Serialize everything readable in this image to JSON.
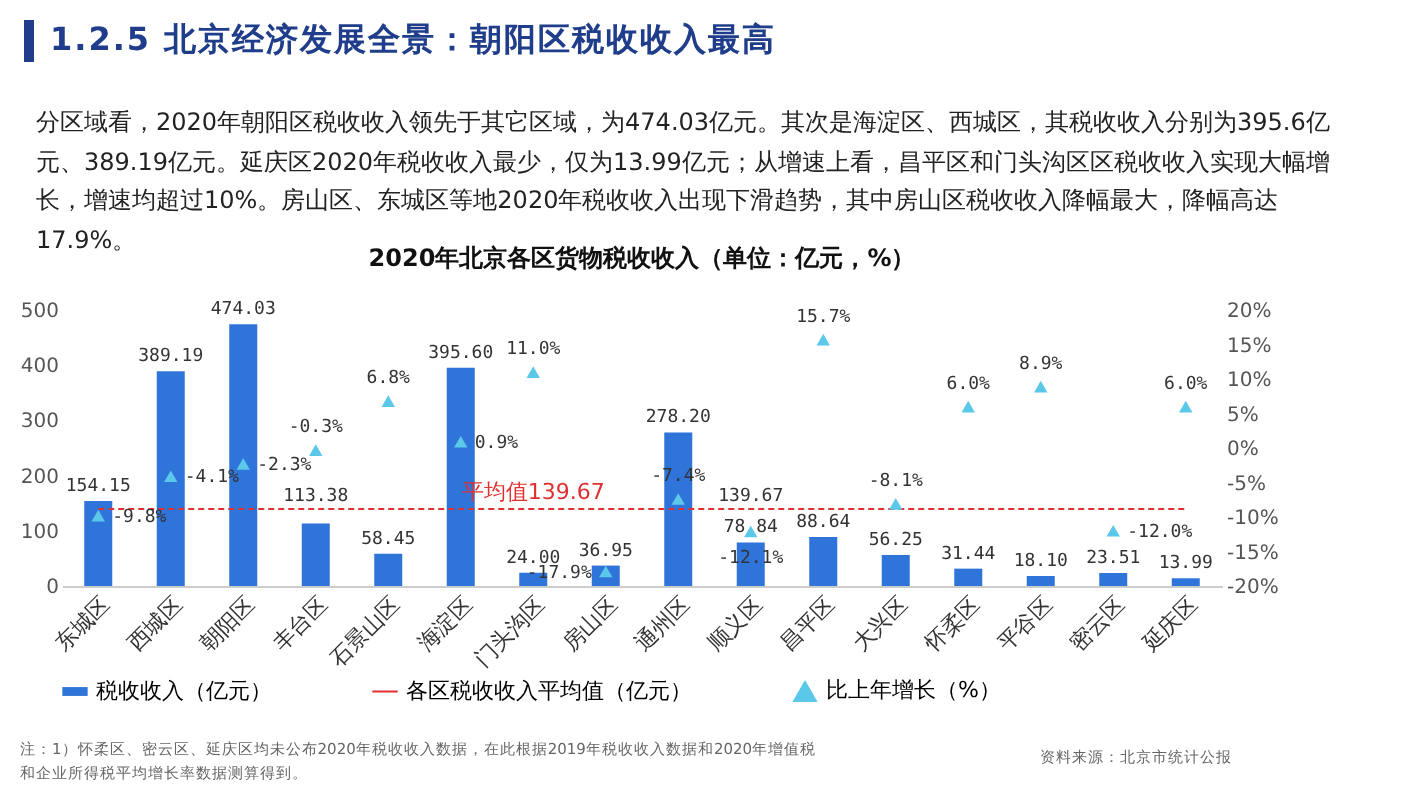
{
  "chart_data": {
    "type": "bar",
    "title": "2020年北京各区货物税收收入（单位：亿元，%）",
    "annotations": [
      "1.2.5 北京经济发展全景：朝阳区税收收入最高",
      "分区域看，2020年朝阳区税收收入领先于其它区域，为474.03亿元。其次是海淀区、西城区，其税收收入分别为395.6亿元、389.19亿元。延庆区2020年税收收入最少，仅为13.99亿元；从增速上看，昌平区和门头沟区区税收收入实现大幅增长，增速均超过10%。房山区、东城区等地2020年税收收入出现下滑趋势，其中房山区税收收入降幅最大，降幅高达17.9%。",
      "注：1）怀柔区、密云区、延庆区均未公布2020年税收收入数据，在此根据2019年税收收入数据和2020年增值税和企业所得税平均增长率数据测算得到。",
      "资料来源：北京市统计公报",
      {
        "text": "平均值139.67",
        "x": "门头沟区",
        "y": 139.67
      }
    ],
    "categories": [
      "东城区",
      "西城区",
      "朝阳区",
      "丰台区",
      "石景山区",
      "海淀区",
      "门头沟区",
      "房山区",
      "通州区",
      "顺义区",
      "昌平区",
      "大兴区",
      "怀柔区",
      "平谷区",
      "密云区",
      "延庆区"
    ],
    "series": [
      {
        "name": "税收收入（亿元）",
        "color": "#2f74d8",
        "values": [
          154.15,
          389.19,
          474.03,
          113.38,
          58.45,
          395.6,
          24.0,
          36.95,
          278.2,
          78.84,
          88.64,
          56.25,
          31.44,
          18.1,
          23.51,
          13.99
        ],
        "value_labels": [
          "154.15",
          "389.19",
          "474.03",
          "113.38",
          "58.45",
          "395.60",
          "24.00",
          "36.95",
          "278.20",
          "78.84",
          "88.64",
          "56.25",
          "31.44",
          "18.10",
          "23.51",
          "13.99"
        ]
      },
      {
        "name": "各区税收收入平均值（亿元）",
        "type": "line",
        "color": "#e03030",
        "line_style": "dashed",
        "marker": "none",
        "values": [
          139.67,
          139.67,
          139.67,
          139.67,
          139.67,
          139.67,
          139.67,
          139.67,
          139.67,
          139.67,
          139.67,
          139.67,
          139.67,
          139.67,
          139.67,
          139.67
        ],
        "value_labels": [
          null,
          null,
          null,
          null,
          null,
          null,
          null,
          null,
          null,
          "139.67",
          null,
          null,
          null,
          null,
          null,
          null
        ]
      },
      {
        "name": "比上年增长（%）",
        "type": "scatter",
        "axis": "y2",
        "color": "#5bc8ea",
        "marker": "triangle",
        "values": [
          -9.8,
          -4.1,
          -2.3,
          -0.3,
          6.8,
          0.9,
          11.0,
          -17.9,
          -7.4,
          -12.1,
          15.7,
          -8.1,
          6.0,
          8.9,
          -12.0,
          6.0
        ],
        "value_labels": [
          "-9.8%",
          "-4.1%",
          "-2.3%",
          "-0.3%",
          "6.8%",
          "0.9%",
          "11.0%",
          "-17.9%",
          "-7.4%",
          "-12.1%",
          "15.7%",
          "-8.1%",
          "6.0%",
          "8.9%",
          "-12.0%",
          "6.0%"
        ]
      }
    ],
    "ylim": [
      0,
      500
    ],
    "yticks": [
      0,
      100,
      200,
      300,
      400,
      500
    ],
    "y2lim": [
      -20,
      20
    ],
    "y2ticks": [
      {
        "value": -20,
        "label": "-20%"
      },
      {
        "value": -15,
        "label": "-15%"
      },
      {
        "value": -10,
        "label": "-10%"
      },
      {
        "value": -5,
        "label": "-5%"
      },
      {
        "value": 0,
        "label": "0%"
      },
      {
        "value": 5,
        "label": "5%"
      },
      {
        "value": 10,
        "label": "10%"
      },
      {
        "value": 15,
        "label": "15%"
      },
      {
        "value": 20,
        "label": "20%"
      }
    ],
    "grid": false,
    "legend": "bottom"
  }
}
